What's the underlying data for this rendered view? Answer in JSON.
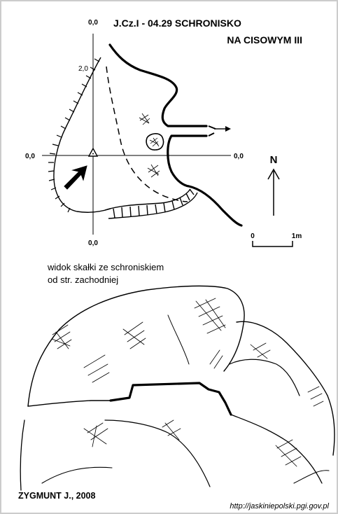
{
  "title": {
    "line1": "J.Cz.I - 04.29  SCHRONISKO",
    "line2": "NA CISOWYM III"
  },
  "plan": {
    "axis_top": "0,0",
    "axis_bottom": "0,0",
    "axis_left": "0,0",
    "axis_right": "0,0",
    "height_mark": "2,0"
  },
  "north": {
    "label": "N"
  },
  "scale": {
    "start": "0",
    "end": "1m"
  },
  "view": {
    "caption_line1": "widok skałki ze schroniskiem",
    "caption_line2": "od str. zachodniej"
  },
  "author": "ZYGMUNT J., 2008",
  "url": "http://jaskiniepolski.pgi.gov.pl",
  "colors": {
    "ink": "#000000",
    "paper": "#ffffff",
    "frame": "#cccccc"
  }
}
